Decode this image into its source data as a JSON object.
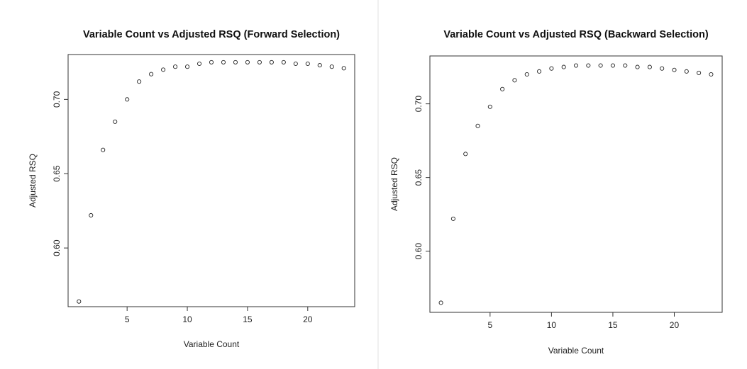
{
  "chart_data": [
    {
      "type": "scatter",
      "title": "Variable Count vs Adjusted RSQ (Forward Selection)",
      "xlabel": "Variable Count",
      "ylabel": "Adjusted RSQ",
      "xlim": [
        0.1,
        23.9
      ],
      "ylim": [
        0.5605,
        0.7302
      ],
      "xticks": [
        5,
        10,
        15,
        20
      ],
      "xtick_labels": [
        "5",
        "10",
        "15",
        "20"
      ],
      "yticks": [
        0.6,
        0.65,
        0.7
      ],
      "ytick_labels": [
        "0.60",
        "0.65",
        "0.70"
      ],
      "marker": "open-circle",
      "grid": false,
      "x": [
        1,
        2,
        3,
        4,
        5,
        6,
        7,
        8,
        9,
        10,
        11,
        12,
        13,
        14,
        15,
        16,
        17,
        18,
        19,
        20,
        21,
        22,
        23
      ],
      "y": [
        0.564,
        0.622,
        0.666,
        0.685,
        0.7,
        0.712,
        0.717,
        0.72,
        0.722,
        0.722,
        0.724,
        0.725,
        0.725,
        0.725,
        0.725,
        0.725,
        0.725,
        0.725,
        0.724,
        0.724,
        0.723,
        0.722,
        0.721
      ]
    },
    {
      "type": "scatter",
      "title": "Variable Count vs Adjusted RSQ (Backward Selection)",
      "xlabel": "Variable Count",
      "ylabel": "Adjusted RSQ",
      "xlim": [
        0.1,
        23.9
      ],
      "ylim": [
        0.5585,
        0.7325
      ],
      "xticks": [
        5,
        10,
        15,
        20
      ],
      "xtick_labels": [
        "5",
        "10",
        "15",
        "20"
      ],
      "yticks": [
        0.6,
        0.65,
        0.7
      ],
      "ytick_labels": [
        "0.60",
        "0.65",
        "0.70"
      ],
      "marker": "open-circle",
      "grid": false,
      "x": [
        1,
        2,
        3,
        4,
        5,
        6,
        7,
        8,
        9,
        10,
        11,
        12,
        13,
        14,
        15,
        16,
        17,
        18,
        19,
        20,
        21,
        22,
        23
      ],
      "y": [
        0.565,
        0.622,
        0.666,
        0.685,
        0.698,
        0.71,
        0.716,
        0.72,
        0.722,
        0.724,
        0.725,
        0.726,
        0.726,
        0.726,
        0.726,
        0.726,
        0.725,
        0.725,
        0.724,
        0.723,
        0.722,
        0.721,
        0.72
      ]
    }
  ]
}
